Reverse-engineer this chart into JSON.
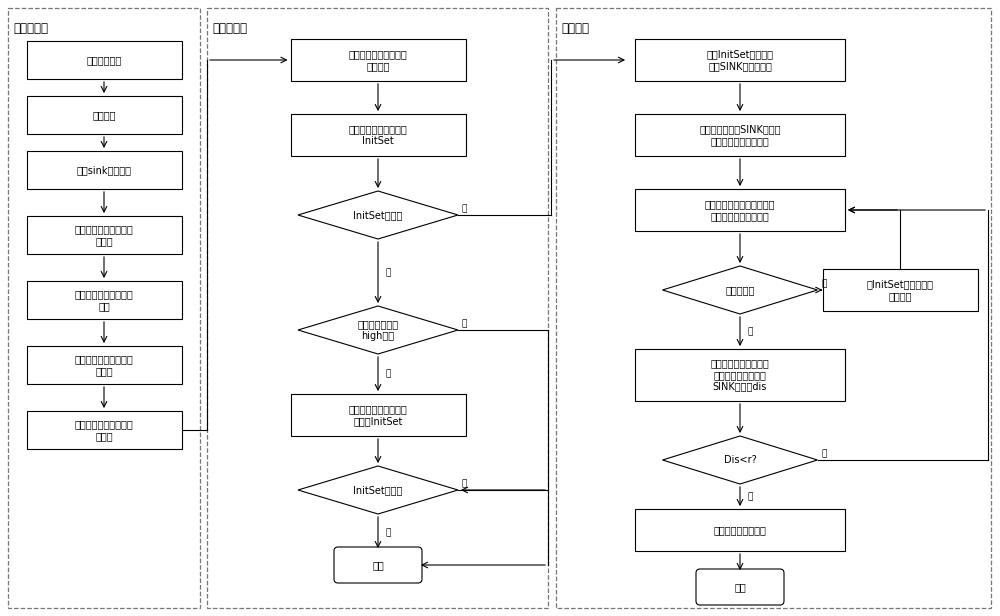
{
  "bg_color": "#ffffff",
  "text_color": "#000000",
  "arrow_color": "#000000",
  "font_size": 7.0,
  "small_font_size": 6.5,
  "title_font_size": 8.5,
  "section1_title": "网络初始化",
  "section2_title": "候选集确定",
  "section3_title": "信息转发",
  "left_boxes": [
    "复杂网络分区",
    "区域编号",
    "虚拟sink位置确定",
    "每个节点判定自己的所\n属区域",
    "每个节点计算自己的层\n编号",
    "每个节点计算自己的子\n层编号",
    "每个节点计算自己的子\n层标识"
  ],
  "mid_box1": "当前发送节点确定邻居\n节点序列",
  "mid_box2": "根据层次号筛选候选集\nInitSet",
  "mid_diamond1": "InitSet为空？",
  "mid_diamond2": "节点位于扩展层\nhigh中？",
  "mid_box3": "根据子层次号重新筛选\n候选集InitSet",
  "mid_diamond3": "InitSet为空？",
  "mid_terminal": "失败",
  "right_box1": "计算InitSet中各个节\n点与SINK之间的距离",
  "right_box2": "根据各个节点域SINK的距离\n对节点进行排序及编号",
  "right_box3": "选取当前距离最小节点作为\n转发节点，并转发信息",
  "right_diamond1": "转发成功？",
  "right_side_box": "从InitSet中去除当前\n转发节点",
  "right_box4": "将转发节点作为当前发\n送节点，并计算其与\nSINK的距离dis",
  "right_diamond2": "Dis<r?",
  "right_box5": "信息转发给目的节点",
  "right_terminal": "结束",
  "yes_label": "是",
  "no_label": "否"
}
